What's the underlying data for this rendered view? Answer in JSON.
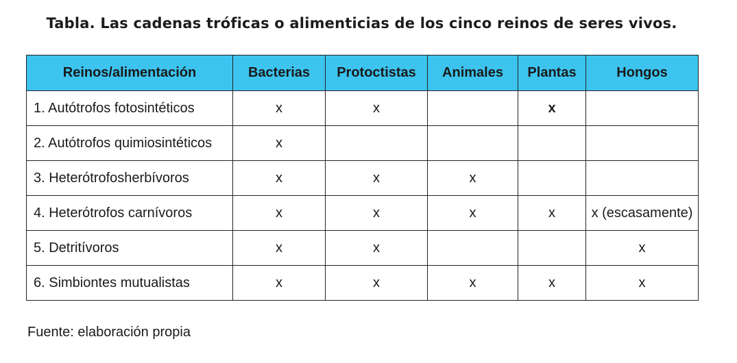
{
  "caption": "Tabla. Las cadenas tróficas o alimenticias de los cinco reinos de seres vivos.",
  "header_color": "#3cc4ef",
  "table": {
    "headers": [
      "Reinos/alimentación",
      "Bacterias",
      "Protoctistas",
      "Animales",
      "Plantas",
      "Hongos"
    ],
    "rows": [
      {
        "label": "1. Autótrofos fotosintéticos",
        "cells": [
          "x",
          "x",
          "",
          "x",
          ""
        ]
      },
      {
        "label": "2. Autótrofos quimiosintéticos",
        "cells": [
          "x",
          "",
          "",
          "",
          ""
        ]
      },
      {
        "label": "3. Heterótrofosherbívoros",
        "cells": [
          "x",
          "x",
          "x",
          "",
          ""
        ]
      },
      {
        "label": "4. Heterótrofos carnívoros",
        "cells": [
          "x",
          "x",
          "x",
          "x",
          "x (escasamente)"
        ]
      },
      {
        "label": "5. Detritívoros",
        "cells": [
          "x",
          "x",
          "",
          "",
          "x"
        ]
      },
      {
        "label": "6. Simbiontes mutualistas",
        "cells": [
          "x",
          "x",
          "x",
          "x",
          "x"
        ]
      }
    ]
  },
  "source": "Fuente: elaboración propia"
}
